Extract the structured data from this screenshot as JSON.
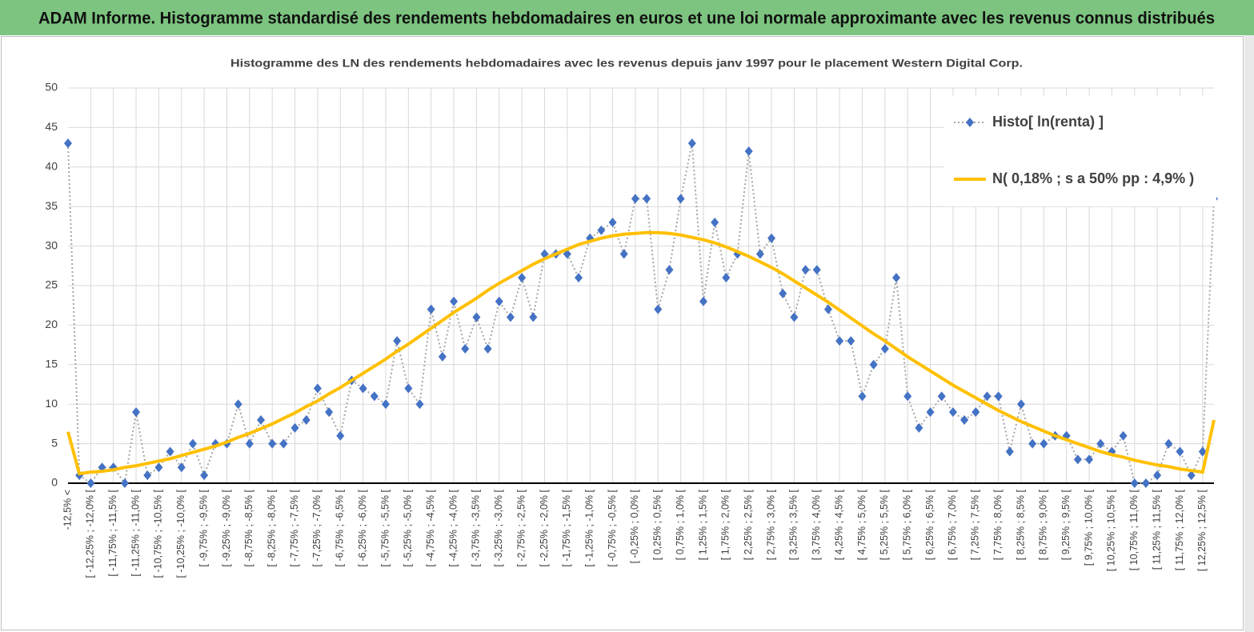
{
  "header": {
    "title": "ADAM Informe. Histogramme standardisé des rendements hebdomadaires en euros et une loi normale approximante avec les revenus connus distribués"
  },
  "chart_data": {
    "type": "line",
    "title": "Histogramme des LN des rendements hebdomadaires avec les revenus depuis janv 1997 pour le placement Western Digital Corp.",
    "categories": [
      "-12,5% <",
      null,
      "[ -12,25% ; -12,0% [",
      null,
      "[ -11,75% ; -11,5% [",
      null,
      "[ -11,25% ; -11,0% [",
      null,
      "[ -10,75% ; -10,5% [",
      null,
      "[ -10,25% ; -10,0% [",
      null,
      "[ -9,75% ; -9,5% [",
      null,
      "[ -9,25% ; -9,0% [",
      null,
      "[ -8,75% ; -8,5% [",
      null,
      "[ -8,25% ; -8,0% [",
      null,
      "[ -7,75% ; -7,5% [",
      null,
      "[ -7,25% ; -7,0% [",
      null,
      "[ -6,75% ; -6,5% [",
      null,
      "[ -6,25% ; -6,0% [",
      null,
      "[ -5,75% ; -5,5% [",
      null,
      "[ -5,25% ; -5,0% [",
      null,
      "[ -4,75% ; -4,5% [",
      null,
      "[ -4,25% ; -4,0% [",
      null,
      "[ -3,75% ; -3,5% [",
      null,
      "[ -3,25% ; -3,0% [",
      null,
      "[ -2,75% ; -2,5% [",
      null,
      "[ -2,25% ; -2,0% [",
      null,
      "[ -1,75% ; -1,5% [",
      null,
      "[ -1,25% ; -1,0% [",
      null,
      "[ -0,75% ; -0,5% [",
      null,
      "[ -0,25% ; 0,0% [",
      null,
      "[ 0,25% ; 0,5% [",
      null,
      "[ 0,75% ; 1,0% [",
      null,
      "[ 1,25% ; 1,5% [",
      null,
      "[ 1,75% ; 2,0% [",
      null,
      "[ 2,25% ; 2,5% [",
      null,
      "[ 2,75% ; 3,0% [",
      null,
      "[ 3,25% ; 3,5% [",
      null,
      "[ 3,75% ; 4,0% [",
      null,
      "[ 4,25% ; 4,5% [",
      null,
      "[ 4,75% ; 5,0% [",
      null,
      "[ 5,25% ; 5,5% [",
      null,
      "[ 5,75% ; 6,0% [",
      null,
      "[ 6,25% ; 6,5% [",
      null,
      "[ 6,75% ; 7,0% [",
      null,
      "[ 7,25% ; 7,5% [",
      null,
      "[ 7,75% ; 8,0% [",
      null,
      "[ 8,25% ; 8,5% [",
      null,
      "[ 8,75% ; 9,0% [",
      null,
      "[ 9,25% ; 9,5% [",
      null,
      "[ 9,75% ; 10,0% [",
      null,
      "[ 10,25% ; 10,5% [",
      null,
      "[ 10,75% ; 11,0% [",
      null,
      "[ 11,25% ; 11,5% [",
      null,
      "[ 11,75% ; 12,0% [",
      null,
      "[ 12,25% ; 12,5% [",
      null
    ],
    "series": [
      {
        "name": "Histo[ ln(renta) ]",
        "color": "#4472c4",
        "values": [
          43,
          1,
          0,
          2,
          2,
          0,
          9,
          1,
          2,
          4,
          2,
          5,
          1,
          5,
          5,
          10,
          5,
          8,
          5,
          5,
          7,
          8,
          12,
          9,
          6,
          13,
          12,
          11,
          10,
          18,
          12,
          10,
          22,
          16,
          23,
          17,
          21,
          17,
          23,
          21,
          26,
          21,
          29,
          29,
          29,
          26,
          31,
          32,
          33,
          29,
          36,
          36,
          22,
          27,
          36,
          43,
          23,
          33,
          26,
          29,
          42,
          29,
          31,
          24,
          21,
          27,
          27,
          22,
          18,
          18,
          11,
          15,
          17,
          26,
          11,
          7,
          9,
          11,
          9,
          8,
          9,
          11,
          11,
          4,
          10,
          5,
          5,
          6,
          6,
          3,
          3,
          5,
          4,
          6,
          0,
          0,
          1,
          5,
          4,
          1,
          4,
          36
        ]
      },
      {
        "name": "N( 0,18% ; s a 50% pp : 4,9% )",
        "color": "#ffc000",
        "values": [
          6.5,
          1.2,
          1.4,
          1.5,
          1.7,
          2.0,
          2.2,
          2.5,
          2.8,
          3.1,
          3.5,
          3.9,
          4.3,
          4.7,
          5.2,
          5.8,
          6.3,
          6.9,
          7.5,
          8.2,
          8.9,
          9.7,
          10.4,
          11.3,
          12.1,
          13.0,
          13.9,
          14.8,
          15.7,
          16.7,
          17.6,
          18.6,
          19.6,
          20.6,
          21.6,
          22.5,
          23.4,
          24.4,
          25.3,
          26.1,
          26.9,
          27.7,
          28.4,
          29.0,
          29.6,
          30.2,
          30.6,
          31.0,
          31.3,
          31.5,
          31.6,
          31.7,
          31.7,
          31.6,
          31.4,
          31.1,
          30.8,
          30.4,
          29.9,
          29.3,
          28.7,
          28.0,
          27.3,
          26.5,
          25.6,
          24.7,
          23.8,
          22.9,
          21.9,
          20.9,
          19.9,
          18.9,
          18.0,
          17.0,
          16.0,
          15.1,
          14.2,
          13.3,
          12.4,
          11.6,
          10.8,
          10.0,
          9.2,
          8.5,
          7.8,
          7.2,
          6.6,
          6.0,
          5.5,
          5.0,
          4.5,
          4.0,
          3.6,
          3.3,
          2.9,
          2.6,
          2.3,
          2.1,
          1.8,
          1.6,
          1.4,
          8
        ]
      }
    ],
    "ylim": [
      0,
      50
    ],
    "yticks": [
      0,
      5,
      10,
      15,
      20,
      25,
      30,
      35,
      40,
      45,
      50
    ],
    "grid": true,
    "legend": "upper right"
  }
}
